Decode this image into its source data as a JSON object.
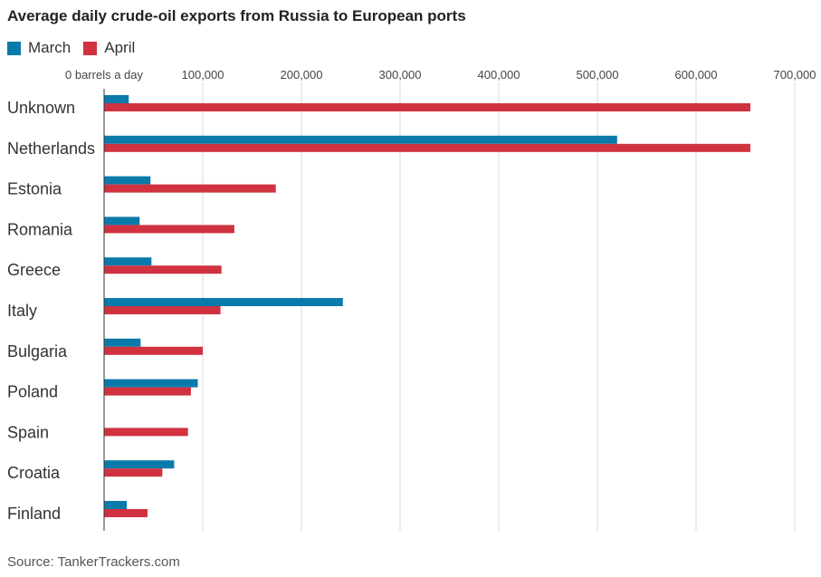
{
  "title": "Average daily crude-oil exports from Russia to European ports",
  "legend": [
    {
      "name": "March",
      "color": "#0a7aab"
    },
    {
      "name": "April",
      "color": "#d0323f"
    }
  ],
  "source": "Source: TankerTrackers.com",
  "chart_data": {
    "type": "bar",
    "orientation": "horizontal",
    "title": "Average daily crude-oil exports from Russia to European ports",
    "xlabel": "",
    "ylabel": "",
    "xlim": [
      0,
      700000
    ],
    "xticks": [
      0,
      100000,
      200000,
      300000,
      400000,
      500000,
      600000,
      700000
    ],
    "xtick_labels": [
      "0 barrels a day",
      "100,000",
      "200,000",
      "300,000",
      "400,000",
      "500,000",
      "600,000",
      "700,000"
    ],
    "grid": true,
    "legend_position": "top-left",
    "categories": [
      "Unknown",
      "Netherlands",
      "Estonia",
      "Romania",
      "Greece",
      "Italy",
      "Bulgaria",
      "Poland",
      "Spain",
      "Croatia",
      "Finland"
    ],
    "series": [
      {
        "name": "March",
        "color": "#0a7aab",
        "values": [
          25000,
          520000,
          47000,
          36000,
          48000,
          242000,
          37000,
          95000,
          0,
          71000,
          23000
        ]
      },
      {
        "name": "April",
        "color": "#d0323f",
        "values": [
          655000,
          655000,
          174000,
          132000,
          119000,
          118000,
          100000,
          88000,
          85000,
          59000,
          44000
        ]
      }
    ]
  }
}
